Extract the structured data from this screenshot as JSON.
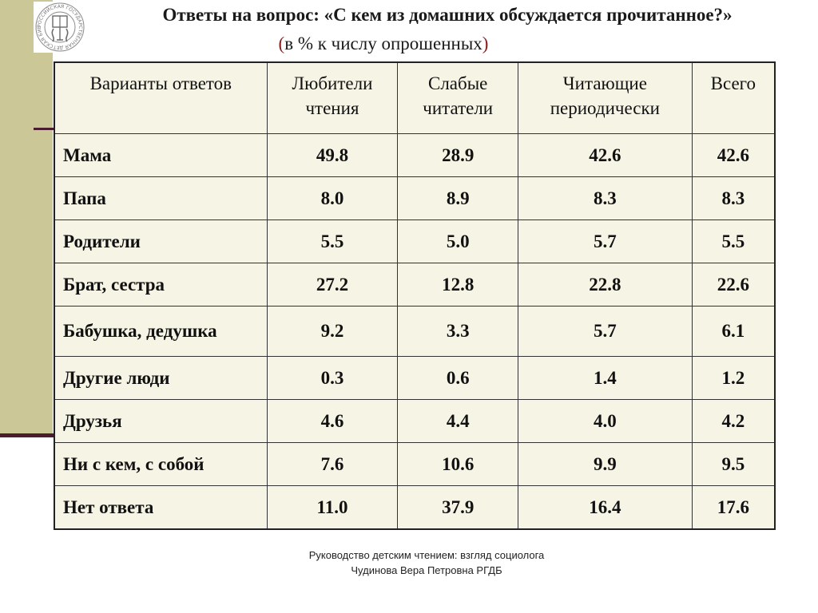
{
  "header": {
    "title": "Ответы на вопрос: «С кем из домашних обсуждается прочитанное?»",
    "subtitle_open": "(",
    "subtitle_text": "в % к числу опрошенных",
    "subtitle_close": ")"
  },
  "logo": {
    "icon": "library-emblem-icon",
    "text": "РОССИЙСКАЯ ГОСУДАРСТВЕННАЯ ДЕТСКАЯ БИБЛИОТЕКА"
  },
  "table": {
    "headers": [
      "Варианты ответов",
      "Любители чтения",
      "Слабые читатели",
      "Читающие периодически",
      "Всего"
    ],
    "rows": [
      [
        "Мама",
        "49.8",
        "28.9",
        "42.6",
        "42.6"
      ],
      [
        "Папа",
        "8.0",
        "8.9",
        "8.3",
        "8.3"
      ],
      [
        "Родители",
        "5.5",
        "5.0",
        "5.7",
        "5.5"
      ],
      [
        "Брат, сестра",
        "27.2",
        "12.8",
        "22.8",
        "22.6"
      ],
      [
        "Бабушка, дедушка",
        "9.2",
        "3.3",
        "5.7",
        "6.1"
      ],
      [
        "Другие люди",
        "0.3",
        "0.6",
        "1.4",
        "1.2"
      ],
      [
        "Друзья",
        "4.6",
        "4.4",
        "4.0",
        "4.2"
      ],
      [
        "Ни с кем, с собой",
        "7.6",
        "10.6",
        "9.9",
        "9.5"
      ],
      [
        "Нет ответа",
        "11.0",
        "37.9",
        "16.4",
        "17.6"
      ]
    ]
  },
  "footer": {
    "line1": "Руководство детским чтением: взгляд социолога",
    "line2": "Чудинова Вера Петровна РГДБ"
  },
  "colors": {
    "side_band": "#cbc797",
    "side_lines": "#4b1c2e",
    "table_background": "#f6f4e4"
  }
}
